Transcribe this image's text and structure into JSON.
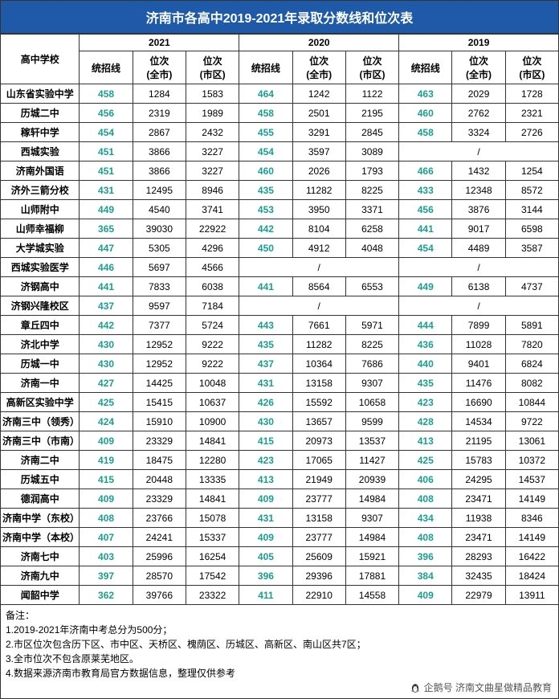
{
  "title": "济南市各高中2019-2021年录取分数线和位次表",
  "header": {
    "school": "高中学校",
    "years": [
      "2021",
      "2020",
      "2019"
    ],
    "sub": [
      "统招线",
      "位次\n(全市)",
      "位次\n(市区)"
    ]
  },
  "score_color": "#1a9e8f",
  "rows": [
    {
      "school": "山东省实验中学",
      "y2021": [
        "458",
        "1284",
        "1583"
      ],
      "y2020": [
        "464",
        "1242",
        "1122"
      ],
      "y2019": [
        "463",
        "2029",
        "1728"
      ]
    },
    {
      "school": "历城二中",
      "y2021": [
        "456",
        "2319",
        "1989"
      ],
      "y2020": [
        "458",
        "2501",
        "2195"
      ],
      "y2019": [
        "460",
        "2762",
        "2321"
      ]
    },
    {
      "school": "稼轩中学",
      "y2021": [
        "454",
        "2867",
        "2432"
      ],
      "y2020": [
        "455",
        "3291",
        "2845"
      ],
      "y2019": [
        "458",
        "3324",
        "2726"
      ]
    },
    {
      "school": "西城实验",
      "y2021": [
        "451",
        "3866",
        "3227"
      ],
      "y2020": [
        "454",
        "3597",
        "3089"
      ],
      "y2019": [
        "/",
        "/",
        "/"
      ],
      "merge2019": true
    },
    {
      "school": "济南外国语",
      "y2021": [
        "451",
        "3866",
        "3227"
      ],
      "y2020": [
        "460",
        "2026",
        "1793"
      ],
      "y2019": [
        "466",
        "1432",
        "1254"
      ]
    },
    {
      "school": "济外三箭分校",
      "y2021": [
        "431",
        "12495",
        "8946"
      ],
      "y2020": [
        "435",
        "11282",
        "8225"
      ],
      "y2019": [
        "433",
        "12348",
        "8572"
      ]
    },
    {
      "school": "山师附中",
      "y2021": [
        "449",
        "4540",
        "3741"
      ],
      "y2020": [
        "453",
        "3950",
        "3371"
      ],
      "y2019": [
        "456",
        "3876",
        "3144"
      ]
    },
    {
      "school": "山师幸福柳",
      "y2021": [
        "365",
        "39030",
        "22922"
      ],
      "y2020": [
        "442",
        "8104",
        "6258"
      ],
      "y2019": [
        "441",
        "9017",
        "6598"
      ]
    },
    {
      "school": "大学城实验",
      "y2021": [
        "447",
        "5305",
        "4296"
      ],
      "y2020": [
        "450",
        "4912",
        "4048"
      ],
      "y2019": [
        "454",
        "4489",
        "3587"
      ]
    },
    {
      "school": "西城实验医学",
      "y2021": [
        "446",
        "5697",
        "4566"
      ],
      "y2020": [
        "/",
        "/",
        "/"
      ],
      "y2019": [
        "/",
        "/",
        "/"
      ],
      "merge2020": true,
      "merge2019": true
    },
    {
      "school": "济钢高中",
      "y2021": [
        "441",
        "7833",
        "6038"
      ],
      "y2020": [
        "441",
        "8564",
        "6553"
      ],
      "y2019": [
        "449",
        "6138",
        "4737"
      ]
    },
    {
      "school": "济钢兴隆校区",
      "y2021": [
        "437",
        "9597",
        "7184"
      ],
      "y2020": [
        "/",
        "/",
        "/"
      ],
      "y2019": [
        "/",
        "/",
        "/"
      ],
      "merge2020": true,
      "merge2019": true
    },
    {
      "school": "章丘四中",
      "y2021": [
        "442",
        "7377",
        "5724"
      ],
      "y2020": [
        "443",
        "7661",
        "5971"
      ],
      "y2019": [
        "444",
        "7899",
        "5891"
      ]
    },
    {
      "school": "济北中学",
      "y2021": [
        "430",
        "12952",
        "9222"
      ],
      "y2020": [
        "435",
        "11282",
        "8225"
      ],
      "y2019": [
        "436",
        "11028",
        "7820"
      ]
    },
    {
      "school": "历城一中",
      "y2021": [
        "430",
        "12952",
        "9222"
      ],
      "y2020": [
        "437",
        "10364",
        "7686"
      ],
      "y2019": [
        "440",
        "9401",
        "6824"
      ]
    },
    {
      "school": "济南一中",
      "y2021": [
        "427",
        "14425",
        "10048"
      ],
      "y2020": [
        "431",
        "13158",
        "9307"
      ],
      "y2019": [
        "435",
        "11476",
        "8082"
      ]
    },
    {
      "school": "高新区实验中学",
      "y2021": [
        "425",
        "15415",
        "10637"
      ],
      "y2020": [
        "426",
        "15592",
        "10658"
      ],
      "y2019": [
        "423",
        "16690",
        "10844"
      ]
    },
    {
      "school": "济南三中（领秀）",
      "y2021": [
        "424",
        "15910",
        "10900"
      ],
      "y2020": [
        "430",
        "13657",
        "9599"
      ],
      "y2019": [
        "428",
        "14534",
        "9722"
      ]
    },
    {
      "school": "济南三中（市南）",
      "y2021": [
        "409",
        "23329",
        "14841"
      ],
      "y2020": [
        "415",
        "20973",
        "13537"
      ],
      "y2019": [
        "413",
        "21195",
        "13061"
      ]
    },
    {
      "school": "济南二中",
      "y2021": [
        "419",
        "18475",
        "12280"
      ],
      "y2020": [
        "423",
        "17065",
        "11427"
      ],
      "y2019": [
        "425",
        "15783",
        "10372"
      ]
    },
    {
      "school": "历城五中",
      "y2021": [
        "415",
        "20448",
        "13335"
      ],
      "y2020": [
        "413",
        "21949",
        "20939"
      ],
      "y2019": [
        "406",
        "24295",
        "14537"
      ]
    },
    {
      "school": "德润高中",
      "y2021": [
        "409",
        "23329",
        "14841"
      ],
      "y2020": [
        "409",
        "23777",
        "14984"
      ],
      "y2019": [
        "408",
        "23471",
        "14149"
      ]
    },
    {
      "school": "济南中学（东校）",
      "y2021": [
        "408",
        "23766",
        "15078"
      ],
      "y2020": [
        "431",
        "13158",
        "9307"
      ],
      "y2019": [
        "434",
        "11938",
        "8346"
      ]
    },
    {
      "school": "济南中学（本校）",
      "y2021": [
        "407",
        "24241",
        "15337"
      ],
      "y2020": [
        "409",
        "23777",
        "14984"
      ],
      "y2019": [
        "408",
        "23471",
        "14149"
      ]
    },
    {
      "school": "济南七中",
      "y2021": [
        "403",
        "25996",
        "16254"
      ],
      "y2020": [
        "405",
        "25609",
        "15921"
      ],
      "y2019": [
        "396",
        "28293",
        "16422"
      ]
    },
    {
      "school": "济南九中",
      "y2021": [
        "397",
        "28570",
        "17542"
      ],
      "y2020": [
        "396",
        "29396",
        "17881"
      ],
      "y2019": [
        "384",
        "32435",
        "18424"
      ]
    },
    {
      "school": "闻韶中学",
      "y2021": [
        "362",
        "39766",
        "23322"
      ],
      "y2020": [
        "411",
        "22910",
        "14558"
      ],
      "y2019": [
        "409",
        "22979",
        "13911"
      ]
    }
  ],
  "notes_title": "备注：",
  "notes": [
    "1.2019-2021年济南中考总分为500分；",
    "2.市区位次包含历下区、市中区、天桥区、槐荫区、历城区、高新区、南山区共7区；",
    "3.全市位次不包含原莱芜地区。",
    "4.数据来源济南市教育局官方数据信息，整理仅供参考"
  ],
  "credit": "企鹅号  济南文曲星做精品教育"
}
